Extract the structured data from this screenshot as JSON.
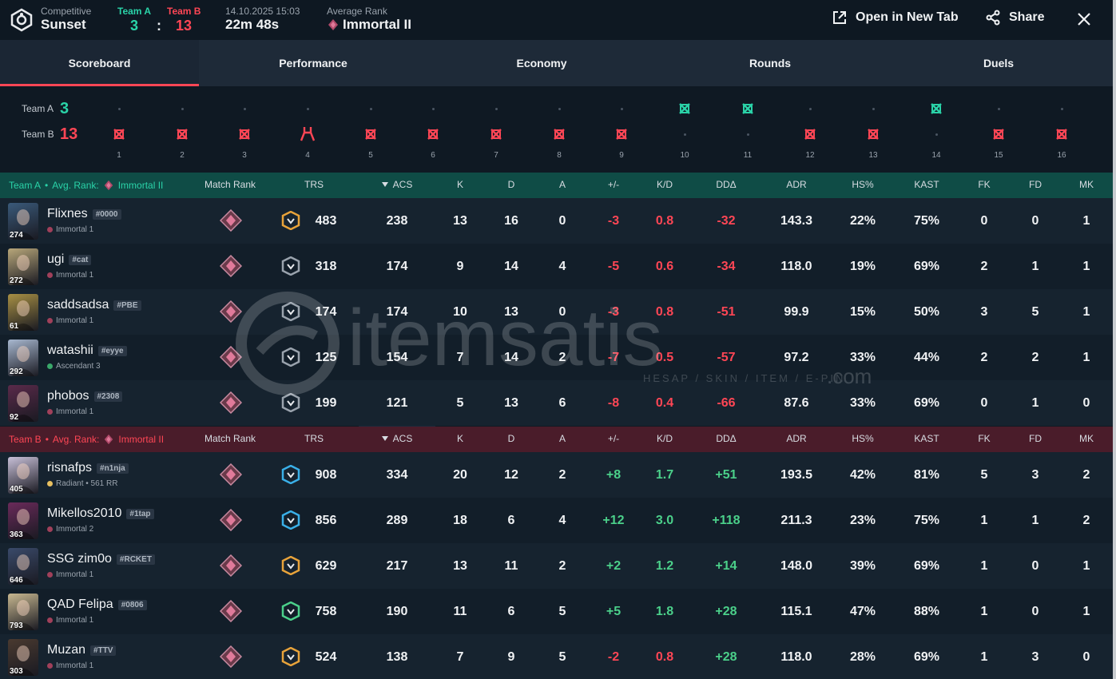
{
  "header": {
    "mode": "Competitive",
    "map": "Sunset",
    "team_a_label": "Team A",
    "team_b_label": "Team B",
    "team_a_score": "3",
    "team_b_score": "13",
    "score_sep": ":",
    "date": "14.10.2025 15:03",
    "duration": "22m 48s",
    "avg_rank_label": "Average Rank",
    "avg_rank": "Immortal II",
    "open_tab": "Open in New Tab",
    "share": "Share"
  },
  "tabs": [
    "Scoreboard",
    "Performance",
    "Economy",
    "Rounds",
    "Duels"
  ],
  "rounds": {
    "team_a_label": "Team A",
    "team_b_label": "Team B",
    "team_a_score": "3",
    "team_b_score": "13",
    "list": [
      {
        "n": "1",
        "winner": "B",
        "type": "elim"
      },
      {
        "n": "2",
        "winner": "B",
        "type": "elim"
      },
      {
        "n": "3",
        "winner": "B",
        "type": "elim"
      },
      {
        "n": "4",
        "winner": "B",
        "type": "defuse"
      },
      {
        "n": "5",
        "winner": "B",
        "type": "elim"
      },
      {
        "n": "6",
        "winner": "B",
        "type": "elim"
      },
      {
        "n": "7",
        "winner": "B",
        "type": "elim"
      },
      {
        "n": "8",
        "winner": "B",
        "type": "elim"
      },
      {
        "n": "9",
        "winner": "B",
        "type": "elim"
      },
      {
        "n": "10",
        "winner": "A",
        "type": "elim"
      },
      {
        "n": "11",
        "winner": "A",
        "type": "elim"
      },
      {
        "n": "12",
        "winner": "B",
        "type": "elim"
      },
      {
        "n": "13",
        "winner": "B",
        "type": "elim"
      },
      {
        "n": "14",
        "winner": "A",
        "type": "elim"
      },
      {
        "n": "15",
        "winner": "B",
        "type": "elim"
      },
      {
        "n": "16",
        "winner": "B",
        "type": "elim"
      }
    ]
  },
  "columns": [
    "Match Rank",
    "TRS",
    "ACS",
    "K",
    "D",
    "A",
    "+/-",
    "K/D",
    "DDΔ",
    "ADR",
    "HS%",
    "KAST",
    "FK",
    "FD",
    "MK"
  ],
  "team_a": {
    "name": "Team A",
    "avg_rank_label": "Avg. Rank:",
    "avg_rank": "Immortal II",
    "color": "#2ad3a8",
    "players": [
      {
        "name": "Flixnes",
        "tag": "#0000",
        "rank": "Immortal 1",
        "level": "274",
        "agent_color": "#3a5a7a",
        "trs_color": "#e8a33a",
        "trs": "483",
        "acs": "238",
        "k": "13",
        "d": "16",
        "a": "0",
        "pm": "-3",
        "kd": "0.8",
        "dd": "-32",
        "adr": "143.3",
        "hs": "22%",
        "kast": "75%",
        "fk": "0",
        "fd": "0",
        "mk": "1"
      },
      {
        "name": "ugi",
        "tag": "#cat",
        "rank": "Immortal 1",
        "level": "272",
        "agent_color": "#b8a77a",
        "trs_color": "#9aa3ad",
        "trs": "318",
        "acs": "174",
        "k": "9",
        "d": "14",
        "a": "4",
        "pm": "-5",
        "kd": "0.6",
        "dd": "-34",
        "adr": "118.0",
        "hs": "19%",
        "kast": "69%",
        "fk": "2",
        "fd": "1",
        "mk": "1"
      },
      {
        "name": "saddsadsa",
        "tag": "#PBE",
        "rank": "Immortal 1",
        "level": "61",
        "agent_color": "#a89044",
        "trs_color": "#9aa3ad",
        "trs": "174",
        "acs": "174",
        "k": "10",
        "d": "13",
        "a": "0",
        "pm": "-3",
        "kd": "0.8",
        "dd": "-51",
        "adr": "99.9",
        "hs": "15%",
        "kast": "50%",
        "fk": "3",
        "fd": "5",
        "mk": "1"
      },
      {
        "name": "watashii",
        "tag": "#eyye",
        "rank": "Ascendant 3",
        "level": "292",
        "agent_color": "#a8b8d0",
        "trs_color": "#9aa3ad",
        "trs": "125",
        "acs": "154",
        "k": "7",
        "d": "14",
        "a": "2",
        "pm": "-7",
        "kd": "0.5",
        "dd": "-57",
        "adr": "97.2",
        "hs": "33%",
        "kast": "44%",
        "fk": "2",
        "fd": "2",
        "mk": "1"
      },
      {
        "name": "phobos",
        "tag": "#2308",
        "rank": "Immortal 1",
        "level": "92",
        "agent_color": "#5a2a4a",
        "trs_color": "#9aa3ad",
        "trs": "199",
        "acs": "121",
        "k": "5",
        "d": "13",
        "a": "6",
        "pm": "-8",
        "kd": "0.4",
        "dd": "-66",
        "adr": "87.6",
        "hs": "33%",
        "kast": "69%",
        "fk": "0",
        "fd": "1",
        "mk": "0"
      }
    ]
  },
  "team_b": {
    "name": "Team B",
    "avg_rank_label": "Avg. Rank:",
    "avg_rank": "Immortal II",
    "color": "#ff4655",
    "players": [
      {
        "name": "risnafps",
        "tag": "#n1nja",
        "rank": "Radiant • 561 RR",
        "level": "405",
        "agent_color": "#c8c0d8",
        "trs_color": "#3ab0e8",
        "trs": "908",
        "acs": "334",
        "k": "20",
        "d": "12",
        "a": "2",
        "pm": "+8",
        "kd": "1.7",
        "dd": "+51",
        "adr": "193.5",
        "hs": "42%",
        "kast": "81%",
        "fk": "5",
        "fd": "3",
        "mk": "2"
      },
      {
        "name": "Mikellos2010",
        "tag": "#1tap",
        "rank": "Immortal 2",
        "level": "363",
        "agent_color": "#6a2a5a",
        "trs_color": "#3ab0e8",
        "trs": "856",
        "acs": "289",
        "k": "18",
        "d": "6",
        "a": "4",
        "pm": "+12",
        "kd": "3.0",
        "dd": "+118",
        "adr": "211.3",
        "hs": "23%",
        "kast": "75%",
        "fk": "1",
        "fd": "1",
        "mk": "2"
      },
      {
        "name": "SSG zim0o",
        "tag": "#RCKET",
        "rank": "Immortal 1",
        "level": "646",
        "agent_color": "#3a4a6a",
        "trs_color": "#e8a33a",
        "trs": "629",
        "acs": "217",
        "k": "13",
        "d": "11",
        "a": "2",
        "pm": "+2",
        "kd": "1.2",
        "dd": "+14",
        "adr": "148.0",
        "hs": "39%",
        "kast": "69%",
        "fk": "1",
        "fd": "0",
        "mk": "1"
      },
      {
        "name": "QAD Felipa",
        "tag": "#0806",
        "rank": "Immortal 1",
        "level": "793",
        "agent_color": "#c8b890",
        "trs_color": "#4bd08a",
        "trs": "758",
        "acs": "190",
        "k": "11",
        "d": "6",
        "a": "5",
        "pm": "+5",
        "kd": "1.8",
        "dd": "+28",
        "adr": "115.1",
        "hs": "47%",
        "kast": "88%",
        "fk": "1",
        "fd": "0",
        "mk": "1"
      },
      {
        "name": "Muzan",
        "tag": "#TTV",
        "rank": "Immortal 1",
        "level": "303",
        "agent_color": "#4a3a30",
        "trs_color": "#e8a33a",
        "trs": "524",
        "acs": "138",
        "k": "7",
        "d": "9",
        "a": "5",
        "pm": "-2",
        "kd": "0.8",
        "dd": "+28",
        "adr": "118.0",
        "hs": "28%",
        "kast": "69%",
        "fk": "1",
        "fd": "3",
        "mk": "0"
      }
    ]
  },
  "watermark": {
    "brand": "itemsatis",
    "tagline": "HESAP / SKIN / ITEM / E-PIN",
    "suffix": ".com"
  }
}
